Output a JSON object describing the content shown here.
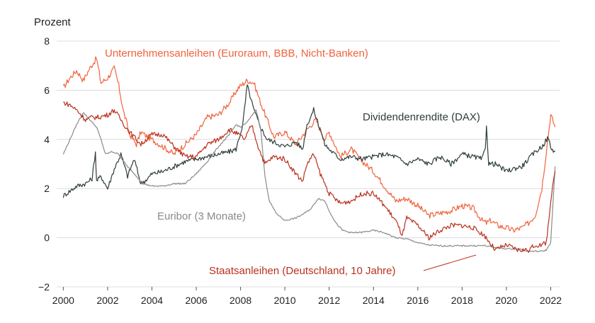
{
  "chart_data": {
    "type": "line",
    "ylabel": "Prozent",
    "ylim": [
      -2,
      8
    ],
    "yticks": [
      -2,
      0,
      2,
      4,
      6,
      8
    ],
    "xlim": [
      1999.7,
      2022.4
    ],
    "xticks": [
      2000,
      2002,
      2004,
      2006,
      2008,
      2010,
      2012,
      2014,
      2016,
      2018,
      2020,
      2022
    ],
    "grid": true,
    "series": [
      {
        "name": "Unternehmensanleihen (Euroraum, BBB, Nicht-Banken)",
        "color": "#f0633d",
        "x": [
          2000.0,
          2000.3,
          2000.6,
          2000.9,
          2001.2,
          2001.5,
          2001.7,
          2002.0,
          2002.3,
          2002.5,
          2002.7,
          2003.0,
          2003.3,
          2003.5,
          2003.8,
          2004.0,
          2004.5,
          2005.0,
          2005.5,
          2006.0,
          2006.5,
          2007.0,
          2007.5,
          2007.9,
          2008.3,
          2008.6,
          2008.9,
          2009.2,
          2009.5,
          2010.0,
          2010.5,
          2011.0,
          2011.4,
          2011.8,
          2012.0,
          2012.5,
          2013.0,
          2013.5,
          2014.0,
          2014.5,
          2015.0,
          2015.5,
          2016.0,
          2016.5,
          2017.0,
          2017.5,
          2018.0,
          2018.5,
          2018.9,
          2019.1,
          2019.3,
          2019.6,
          2020.0,
          2020.3,
          2020.7,
          2021.0,
          2021.3,
          2021.6,
          2021.8,
          2022.0,
          2022.2
        ],
        "y": [
          6.1,
          6.5,
          6.8,
          6.4,
          6.9,
          7.3,
          6.3,
          6.5,
          6.9,
          6.2,
          5.2,
          4.2,
          3.8,
          4.3,
          4.1,
          4.0,
          3.7,
          3.4,
          3.8,
          4.2,
          4.9,
          5.0,
          5.5,
          6.1,
          6.4,
          6.3,
          5.5,
          4.8,
          4.1,
          4.3,
          3.8,
          4.4,
          4.8,
          4.0,
          4.3,
          3.3,
          3.6,
          3.1,
          2.7,
          2.1,
          1.5,
          1.6,
          1.3,
          0.9,
          1.0,
          1.1,
          1.3,
          1.2,
          0.7,
          0.6,
          0.7,
          0.5,
          0.4,
          0.3,
          0.4,
          0.6,
          0.9,
          2.0,
          3.5,
          5.0,
          4.5
        ]
      },
      {
        "name": "Dividendenrendite (DAX)",
        "color": "#2d3d3a",
        "x": [
          2000.0,
          2000.3,
          2000.6,
          2001.0,
          2001.3,
          2001.45,
          2001.5,
          2001.7,
          2002.0,
          2002.3,
          2002.6,
          2002.9,
          2003.2,
          2003.5,
          2003.8,
          2004.0,
          2004.5,
          2005.0,
          2005.5,
          2006.0,
          2006.5,
          2007.0,
          2007.5,
          2007.8,
          2008.1,
          2008.3,
          2008.6,
          2008.9,
          2009.2,
          2009.5,
          2010.0,
          2010.5,
          2010.8,
          2011.0,
          2011.3,
          2011.6,
          2011.8,
          2012.0,
          2012.5,
          2013.0,
          2013.5,
          2014.0,
          2014.5,
          2015.0,
          2015.5,
          2016.0,
          2016.5,
          2017.0,
          2017.5,
          2018.0,
          2018.5,
          2018.9,
          2019.05,
          2019.1,
          2019.2,
          2019.5,
          2020.0,
          2020.3,
          2020.7,
          2021.0,
          2021.3,
          2021.6,
          2021.9,
          2022.0,
          2022.2
        ],
        "y": [
          1.7,
          1.9,
          2.1,
          2.2,
          2.4,
          3.5,
          2.3,
          2.5,
          2.0,
          2.8,
          3.4,
          2.5,
          3.2,
          2.2,
          2.4,
          2.6,
          2.7,
          2.9,
          3.1,
          3.2,
          3.3,
          3.4,
          3.5,
          3.6,
          4.6,
          6.2,
          5.2,
          4.5,
          4.0,
          3.9,
          3.7,
          3.9,
          3.6,
          4.6,
          5.2,
          4.4,
          3.8,
          3.6,
          3.2,
          3.3,
          3.2,
          3.3,
          3.4,
          3.3,
          3.0,
          3.2,
          3.0,
          3.3,
          3.0,
          3.4,
          3.3,
          3.2,
          3.6,
          4.6,
          3.0,
          3.0,
          2.7,
          2.8,
          2.9,
          3.2,
          3.5,
          3.7,
          4.1,
          3.6,
          3.5
        ]
      },
      {
        "name": "Euribor (3 Monate)",
        "color": "#8a8a8a",
        "x": [
          2000.0,
          2000.3,
          2000.6,
          2000.9,
          2001.2,
          2001.5,
          2001.7,
          2001.9,
          2002.2,
          2002.5,
          2002.8,
          2003.0,
          2003.3,
          2003.6,
          2004.0,
          2004.5,
          2005.0,
          2005.5,
          2006.0,
          2006.5,
          2007.0,
          2007.5,
          2007.8,
          2008.0,
          2008.3,
          2008.7,
          2008.9,
          2009.1,
          2009.3,
          2009.6,
          2010.0,
          2010.5,
          2010.9,
          2011.2,
          2011.5,
          2011.8,
          2012.0,
          2012.3,
          2012.6,
          2013.0,
          2013.5,
          2014.0,
          2014.5,
          2015.0,
          2015.5,
          2016.0,
          2016.5,
          2017.0,
          2018.0,
          2019.0,
          2019.5,
          2020.0,
          2020.5,
          2021.0,
          2021.3,
          2021.6,
          2021.8,
          2022.0,
          2022.2
        ],
        "y": [
          3.4,
          4.0,
          4.6,
          5.1,
          4.8,
          4.5,
          4.0,
          3.4,
          3.5,
          3.4,
          3.0,
          2.8,
          2.5,
          2.2,
          2.1,
          2.1,
          2.2,
          2.2,
          2.6,
          3.1,
          3.7,
          4.2,
          4.6,
          4.5,
          4.7,
          5.2,
          4.5,
          2.5,
          1.5,
          1.0,
          0.7,
          0.8,
          1.0,
          1.2,
          1.6,
          1.5,
          1.1,
          0.6,
          0.3,
          0.2,
          0.22,
          0.3,
          0.2,
          0.0,
          -0.05,
          -0.2,
          -0.3,
          -0.33,
          -0.33,
          -0.32,
          -0.4,
          -0.45,
          -0.45,
          -0.55,
          -0.55,
          -0.55,
          -0.5,
          -0.2,
          2.9
        ]
      },
      {
        "name": "Staatsanleihen (Deutschland, 10 Jahre)",
        "color": "#b9301e",
        "x": [
          2000.0,
          2000.3,
          2000.6,
          2001.0,
          2001.3,
          2001.6,
          2002.0,
          2002.3,
          2002.6,
          2002.9,
          2003.2,
          2003.5,
          2004.0,
          2004.5,
          2005.0,
          2005.5,
          2006.0,
          2006.5,
          2007.0,
          2007.5,
          2007.9,
          2008.2,
          2008.5,
          2008.8,
          2009.1,
          2009.5,
          2010.0,
          2010.5,
          2010.8,
          2011.0,
          2011.3,
          2011.6,
          2012.0,
          2012.5,
          2013.0,
          2013.5,
          2014.0,
          2014.5,
          2015.0,
          2015.3,
          2015.5,
          2016.0,
          2016.5,
          2017.0,
          2017.5,
          2018.0,
          2018.5,
          2019.0,
          2019.5,
          2020.0,
          2020.5,
          2021.0,
          2021.3,
          2021.6,
          2021.8,
          2022.0,
          2022.2
        ],
        "y": [
          5.5,
          5.4,
          5.2,
          4.8,
          4.9,
          4.9,
          5.0,
          5.2,
          4.8,
          4.4,
          4.1,
          3.8,
          4.2,
          4.2,
          3.7,
          3.3,
          3.3,
          3.8,
          4.0,
          4.4,
          4.2,
          4.0,
          4.6,
          3.7,
          3.0,
          3.3,
          3.2,
          2.6,
          2.3,
          3.0,
          3.4,
          2.6,
          1.8,
          1.4,
          1.5,
          1.8,
          1.8,
          1.3,
          0.7,
          0.1,
          0.8,
          0.5,
          0.0,
          0.3,
          0.5,
          0.5,
          0.4,
          0.1,
          -0.5,
          -0.3,
          -0.5,
          -0.5,
          -0.3,
          -0.3,
          -0.2,
          1.5,
          2.7
        ]
      }
    ],
    "labels": [
      {
        "text": "Unternehmensanleihen (Euroraum, BBB, Nicht-Banken)",
        "color": "#f0633d"
      },
      {
        "text": "Dividendenrendite (DAX)",
        "color": "#2d3d3a"
      },
      {
        "text": "Euribor (3 Monate)",
        "color": "#8a8a8a"
      },
      {
        "text": "Staatsanleihen (Deutschland, 10 Jahre)",
        "color": "#b9301e"
      }
    ]
  }
}
